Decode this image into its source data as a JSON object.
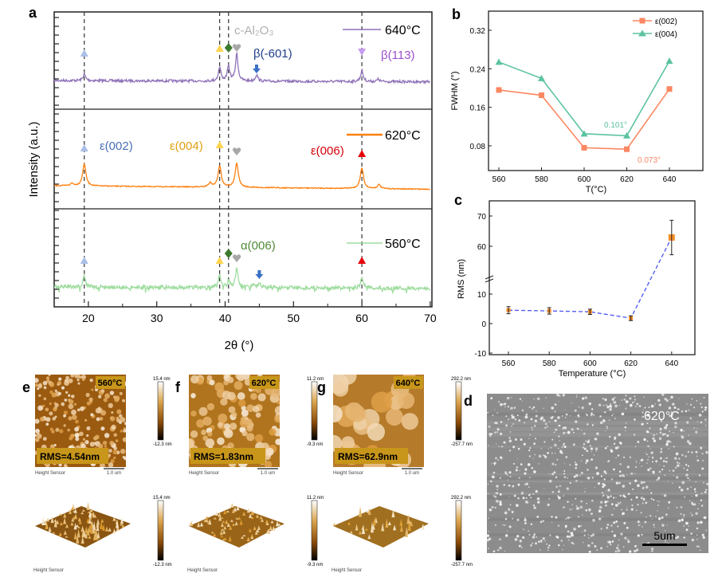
{
  "panels": {
    "a": "a",
    "b": "b",
    "c": "c",
    "d": "d",
    "e": "e",
    "f": "f",
    "g": "g"
  },
  "chart_data": [
    {
      "panel": "a",
      "type": "line",
      "xlabel": "2θ (°)",
      "ylabel": "Intensity (a.u.)",
      "xlim": [
        15,
        70
      ],
      "xticks": [
        20,
        30,
        40,
        50,
        60,
        70
      ],
      "reference_lines": [
        19.4,
        39.2,
        40.5,
        60.0
      ],
      "series": [
        {
          "name": "640°C",
          "color": "#8f72b9",
          "peaks": [
            {
              "x": 19.4,
              "h": 8
            },
            {
              "x": 39.2,
              "h": 17
            },
            {
              "x": 40.5,
              "h": 18
            },
            {
              "x": 41.7,
              "h": 34
            },
            {
              "x": 44.6,
              "h": 8
            },
            {
              "x": 60.0,
              "h": 14
            },
            {
              "x": 62.4,
              "h": 3
            }
          ]
        },
        {
          "name": "620°C",
          "color": "#ff7f0e",
          "peaks": [
            {
              "x": 19.4,
              "h": 28
            },
            {
              "x": 39.2,
              "h": 27
            },
            {
              "x": 41.7,
              "h": 30
            },
            {
              "x": 60.0,
              "h": 26
            },
            {
              "x": 62.5,
              "h": 5
            },
            {
              "x": 37.8,
              "h": 5
            },
            {
              "x": 17.6,
              "h": 3
            }
          ]
        },
        {
          "name": "560°C",
          "color": "#9fdc9f",
          "peaks": [
            {
              "x": 19.4,
              "h": 14
            },
            {
              "x": 39.2,
              "h": 15
            },
            {
              "x": 40.5,
              "h": 8
            },
            {
              "x": 41.7,
              "h": 24
            },
            {
              "x": 44.0,
              "h": 4
            },
            {
              "x": 45.0,
              "h": 6
            },
            {
              "x": 60.0,
              "h": 13
            }
          ]
        }
      ],
      "annotations": {
        "c_al2o3": "c-Al₂O₃",
        "beta_601": "β(-601)",
        "beta_113": "β(113)",
        "eps_002": "ε(002)",
        "eps_004": "ε(004)",
        "eps_006": "ε(006)",
        "alpha_006": "α(006)"
      },
      "marker_colors": {
        "eps_002": "#a9bfe8",
        "eps_004": "#ffd44f",
        "alpha_006": "#3c7a2c",
        "c_al2o3": "#a8a8a8",
        "eps_006": "#e8000b",
        "beta_113": "#c89cf2",
        "beta_601": "#3a6fc6"
      }
    },
    {
      "panel": "b",
      "type": "line",
      "xlabel": "T(°C)",
      "ylabel": "FWHM (°)",
      "xlim": [
        555,
        652
      ],
      "ylim": [
        0.03,
        0.36
      ],
      "x": [
        560,
        580,
        600,
        620,
        640
      ],
      "yticks": [
        "0.08",
        "0.16",
        "0.24",
        "0.32"
      ],
      "legend": "top-right",
      "series": [
        {
          "name": "ε(002)",
          "color": "#fb8762",
          "marker": "square",
          "values": [
            0.196,
            0.185,
            0.076,
            0.073,
            0.198
          ]
        },
        {
          "name": "ε(004)",
          "color": "#5cc3a0",
          "marker": "triangle",
          "values": [
            0.254,
            0.22,
            0.105,
            0.101,
            0.256
          ]
        }
      ],
      "annotations": {
        "a004": "0.101°",
        "a002": "0.073°"
      }
    },
    {
      "panel": "c",
      "type": "scatter",
      "xlabel": "Temperature (°C)",
      "ylabel": "RMS (nm)",
      "x": [
        560,
        580,
        600,
        620,
        640
      ],
      "values": [
        4.54,
        4.3,
        4.0,
        1.83,
        62.9
      ],
      "errors": [
        1.2,
        1.1,
        0.9,
        0.8,
        5.7
      ],
      "yticks": [
        "-10",
        "0",
        "10",
        "60",
        "70"
      ],
      "y_axis_break": [
        15,
        52
      ],
      "marker_color": "#f5902a",
      "line_color": "#4a55f0"
    }
  ],
  "afm": [
    {
      "panel": "e",
      "temp": "560°C",
      "rms": "RMS=4.54nm",
      "max": "15.4 nm",
      "min": "-12.3 nm",
      "sensor": "Height Sensor",
      "scale": "1.0 um",
      "grain": "fine"
    },
    {
      "panel": "f",
      "temp": "620°C",
      "rms": "RMS=1.83nm",
      "max": "11.2 nm",
      "min": "-9.3 nm",
      "sensor": "Height Sensor",
      "scale": "1.0 um",
      "grain": "medium"
    },
    {
      "panel": "g",
      "temp": "640°C",
      "rms": "RMS=62.9nm",
      "max": "292.2 nm",
      "min": "-257.7 nm",
      "sensor": "Height Sensor",
      "scale": "1.0 um",
      "grain": "coarse"
    }
  ],
  "sem": {
    "temp": "620°C",
    "scale": "5um"
  }
}
